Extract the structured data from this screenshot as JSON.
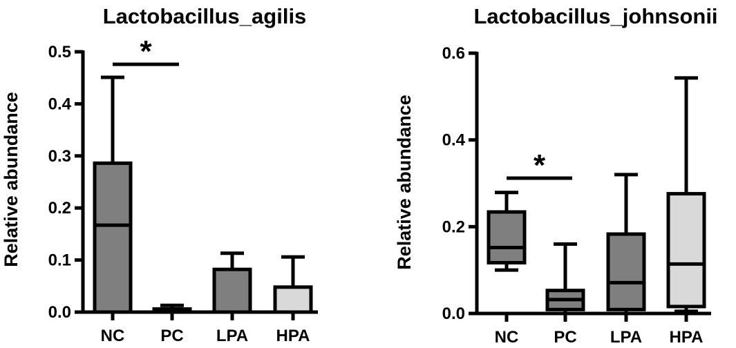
{
  "chart_data": [
    {
      "type": "box",
      "title": "Lactobacillus_agilis",
      "ylabel": "Relative abundance",
      "ylim": [
        0,
        0.5
      ],
      "yticks": [
        "0.0",
        "0.1",
        "0.2",
        "0.3",
        "0.4",
        "0.5"
      ],
      "categories": [
        "NC",
        "PC",
        "LPA",
        "HPA"
      ],
      "colors": [
        "#7f7f7f",
        "#7f7f7f",
        "#7f7f7f",
        "#d9d9d9"
      ],
      "boxes": [
        {
          "name": "NC",
          "min": 0.0,
          "q1": 0.0,
          "median": 0.167,
          "q3": 0.286,
          "max": 0.451
        },
        {
          "name": "PC",
          "min": 0.0,
          "q1": 0.0,
          "median": 0.003,
          "q3": 0.006,
          "max": 0.013
        },
        {
          "name": "LPA",
          "min": 0.0,
          "q1": 0.0,
          "median": 0.0,
          "q3": 0.082,
          "max": 0.113
        },
        {
          "name": "HPA",
          "min": 0.0,
          "q1": 0.0,
          "median": 0.0,
          "q3": 0.048,
          "max": 0.106
        }
      ],
      "significance": [
        {
          "from": "NC",
          "to": "PC",
          "label": "*",
          "y": 0.476
        }
      ]
    },
    {
      "type": "box",
      "title": "Lactobacillus_johnsonii",
      "ylabel": "Relative abundance",
      "ylim": [
        0,
        0.6
      ],
      "yticks": [
        "0.0",
        "0.2",
        "0.4",
        "0.6"
      ],
      "categories": [
        "NC",
        "PC",
        "LPA",
        "HPA"
      ],
      "colors": [
        "#7f7f7f",
        "#7f7f7f",
        "#7f7f7f",
        "#d9d9d9"
      ],
      "boxes": [
        {
          "name": "NC",
          "min": 0.1,
          "q1": 0.117,
          "median": 0.152,
          "q3": 0.234,
          "max": 0.279
        },
        {
          "name": "PC",
          "min": 0.0,
          "q1": 0.009,
          "median": 0.032,
          "q3": 0.053,
          "max": 0.16
        },
        {
          "name": "LPA",
          "min": 0.0,
          "q1": 0.009,
          "median": 0.071,
          "q3": 0.183,
          "max": 0.32
        },
        {
          "name": "HPA",
          "min": 0.005,
          "q1": 0.016,
          "median": 0.114,
          "q3": 0.276,
          "max": 0.543
        }
      ],
      "significance": [
        {
          "from": "NC",
          "to": "PC",
          "label": "*",
          "y": 0.312
        }
      ]
    }
  ]
}
